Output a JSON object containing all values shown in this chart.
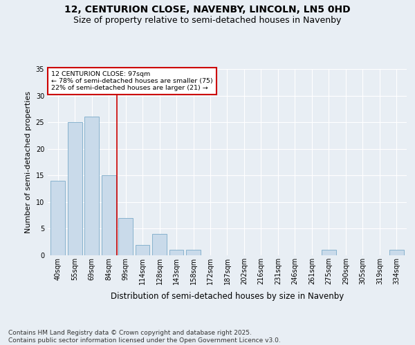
{
  "title_line1": "12, CENTURION CLOSE, NAVENBY, LINCOLN, LN5 0HD",
  "title_line2": "Size of property relative to semi-detached houses in Navenby",
  "xlabel": "Distribution of semi-detached houses by size in Navenby",
  "ylabel": "Number of semi-detached properties",
  "categories": [
    "40sqm",
    "55sqm",
    "69sqm",
    "84sqm",
    "99sqm",
    "114sqm",
    "128sqm",
    "143sqm",
    "158sqm",
    "172sqm",
    "187sqm",
    "202sqm",
    "216sqm",
    "231sqm",
    "246sqm",
    "261sqm",
    "275sqm",
    "290sqm",
    "305sqm",
    "319sqm",
    "334sqm"
  ],
  "values": [
    14,
    25,
    26,
    15,
    7,
    2,
    4,
    1,
    1,
    0,
    0,
    0,
    0,
    0,
    0,
    0,
    1,
    0,
    0,
    0,
    1
  ],
  "bar_color": "#c9daea",
  "bar_edge_color": "#7aaac8",
  "annotation_text": "12 CENTURION CLOSE: 97sqm\n← 78% of semi-detached houses are smaller (75)\n22% of semi-detached houses are larger (21) →",
  "annotation_box_color": "#ffffff",
  "annotation_box_edge_color": "#cc0000",
  "vline_x_index": 3.5,
  "vline_color": "#cc0000",
  "ylim": [
    0,
    35
  ],
  "yticks": [
    0,
    5,
    10,
    15,
    20,
    25,
    30,
    35
  ],
  "footnote": "Contains HM Land Registry data © Crown copyright and database right 2025.\nContains public sector information licensed under the Open Government Licence v3.0.",
  "background_color": "#e8eef4",
  "grid_color": "#ffffff",
  "title_fontsize": 10,
  "subtitle_fontsize": 9,
  "axis_label_fontsize": 8,
  "tick_fontsize": 7,
  "footnote_fontsize": 6.5
}
